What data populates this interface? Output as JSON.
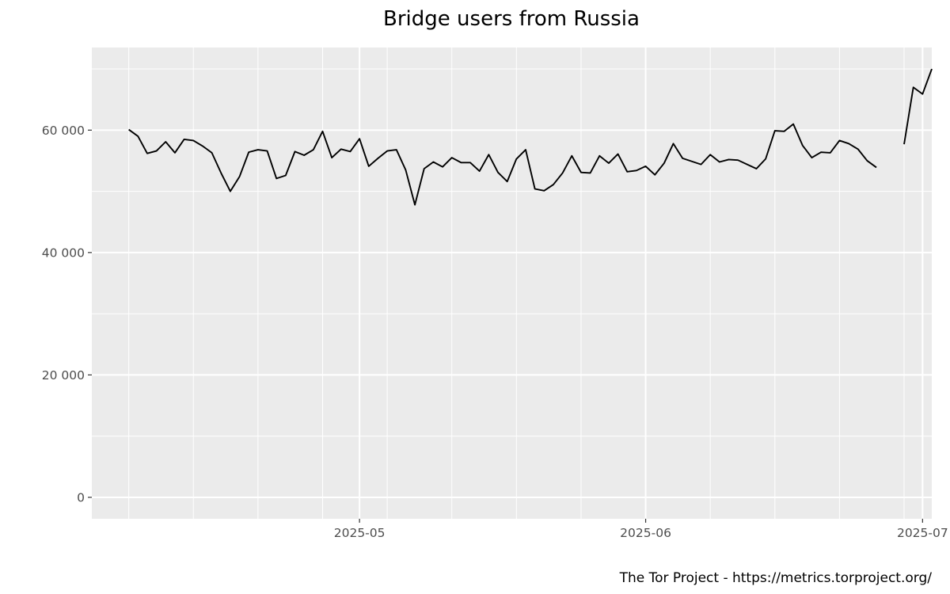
{
  "chart_data": {
    "type": "line",
    "title": "Bridge users from Russia",
    "caption": "The Tor Project - https://metrics.torproject.org/",
    "xlabel": "",
    "ylabel": "",
    "xlim": [
      "2025-04-02",
      "2025-07-02"
    ],
    "ylim": [
      -3500,
      73500
    ],
    "grid": true,
    "x_ticks": [
      {
        "value": "2025-05-01",
        "label": "2025-05"
      },
      {
        "value": "2025-06-01",
        "label": "2025-06"
      },
      {
        "value": "2025-07-01",
        "label": "2025-07"
      }
    ],
    "y_ticks": [
      {
        "value": 0,
        "label": "0"
      },
      {
        "value": 20000,
        "label": "20 000"
      },
      {
        "value": 40000,
        "label": "40 000"
      },
      {
        "value": 60000,
        "label": "60 000"
      }
    ],
    "series": [
      {
        "color": "#000000",
        "points": [
          [
            "2025-04-06",
            60100
          ],
          [
            "2025-04-07",
            59000
          ],
          [
            "2025-04-08",
            56200
          ],
          [
            "2025-04-09",
            56600
          ],
          [
            "2025-04-10",
            58100
          ],
          [
            "2025-04-11",
            56300
          ],
          [
            "2025-04-12",
            58500
          ],
          [
            "2025-04-13",
            58300
          ],
          [
            "2025-04-14",
            57400
          ],
          [
            "2025-04-15",
            56300
          ],
          [
            "2025-04-16",
            53000
          ],
          [
            "2025-04-17",
            50000
          ],
          [
            "2025-04-18",
            52400
          ],
          [
            "2025-04-19",
            56400
          ],
          [
            "2025-04-20",
            56800
          ],
          [
            "2025-04-21",
            56600
          ],
          [
            "2025-04-22",
            52100
          ],
          [
            "2025-04-23",
            52600
          ],
          [
            "2025-04-24",
            56500
          ],
          [
            "2025-04-25",
            55900
          ],
          [
            "2025-04-26",
            56800
          ],
          [
            "2025-04-27",
            59800
          ],
          [
            "2025-04-28",
            55500
          ],
          [
            "2025-04-29",
            56900
          ],
          [
            "2025-04-30",
            56500
          ],
          [
            "2025-05-01",
            58600
          ],
          [
            "2025-05-02",
            54100
          ],
          [
            "2025-05-03",
            55400
          ],
          [
            "2025-05-04",
            56600
          ],
          [
            "2025-05-05",
            56800
          ],
          [
            "2025-05-06",
            53500
          ],
          [
            "2025-05-07",
            47800
          ],
          [
            "2025-05-08",
            53700
          ],
          [
            "2025-05-09",
            54800
          ],
          [
            "2025-05-10",
            54000
          ],
          [
            "2025-05-11",
            55500
          ],
          [
            "2025-05-12",
            54700
          ],
          [
            "2025-05-13",
            54700
          ],
          [
            "2025-05-14",
            53300
          ],
          [
            "2025-05-15",
            56000
          ],
          [
            "2025-05-16",
            53100
          ],
          [
            "2025-05-17",
            51600
          ],
          [
            "2025-05-18",
            55300
          ],
          [
            "2025-05-19",
            56800
          ],
          [
            "2025-05-20",
            50400
          ],
          [
            "2025-05-21",
            50100
          ],
          [
            "2025-05-22",
            51100
          ],
          [
            "2025-05-23",
            53000
          ],
          [
            "2025-05-24",
            55800
          ],
          [
            "2025-05-25",
            53100
          ],
          [
            "2025-05-26",
            53000
          ],
          [
            "2025-05-27",
            55800
          ],
          [
            "2025-05-28",
            54600
          ],
          [
            "2025-05-29",
            56100
          ],
          [
            "2025-05-30",
            53200
          ],
          [
            "2025-05-31",
            53400
          ],
          [
            "2025-06-01",
            54100
          ],
          [
            "2025-06-02",
            52700
          ],
          [
            "2025-06-03",
            54600
          ],
          [
            "2025-06-04",
            57800
          ],
          [
            "2025-06-05",
            55400
          ],
          [
            "2025-06-06",
            54900
          ],
          [
            "2025-06-07",
            54400
          ],
          [
            "2025-06-08",
            56000
          ],
          [
            "2025-06-09",
            54800
          ],
          [
            "2025-06-10",
            55200
          ],
          [
            "2025-06-11",
            55100
          ],
          [
            "2025-06-12",
            54400
          ],
          [
            "2025-06-13",
            53700
          ],
          [
            "2025-06-14",
            55300
          ],
          [
            "2025-06-15",
            59900
          ],
          [
            "2025-06-16",
            59800
          ],
          [
            "2025-06-17",
            61000
          ],
          [
            "2025-06-18",
            57500
          ],
          [
            "2025-06-19",
            55500
          ],
          [
            "2025-06-20",
            56400
          ],
          [
            "2025-06-21",
            56300
          ],
          [
            "2025-06-22",
            58300
          ],
          [
            "2025-06-23",
            57800
          ],
          [
            "2025-06-24",
            56900
          ],
          [
            "2025-06-25",
            55000
          ],
          [
            "2025-06-26",
            53900
          ],
          [
            "2025-06-27",
            null
          ],
          [
            "2025-06-28",
            null
          ],
          [
            "2025-06-29",
            57700
          ],
          [
            "2025-06-30",
            67000
          ],
          [
            "2025-07-01",
            65900
          ],
          [
            "2025-07-02",
            70000
          ]
        ]
      }
    ]
  }
}
